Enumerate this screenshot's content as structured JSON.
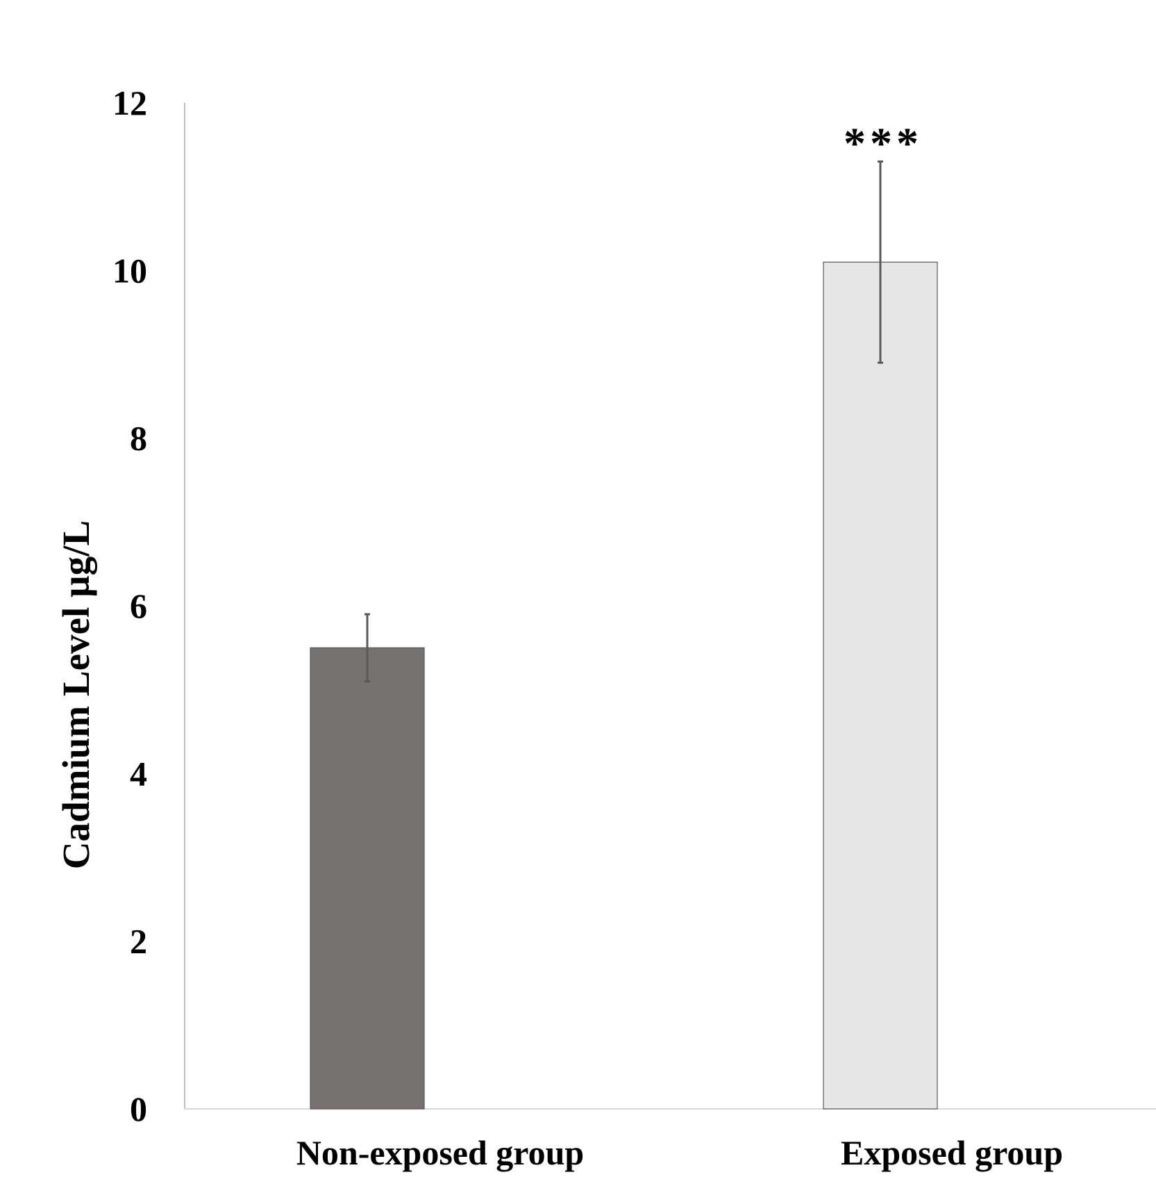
{
  "chart_data": {
    "type": "bar",
    "title": "",
    "xlabel": "",
    "ylabel": "Cadmium Level µg/L",
    "categories": [
      "Non-exposed group",
      "Exposed group"
    ],
    "values": [
      5.5,
      10.1
    ],
    "error_bars": [
      {
        "lower": 5.1,
        "upper": 5.9
      },
      {
        "lower": 8.9,
        "upper": 11.3
      }
    ],
    "bar_colors": [
      "#767171",
      "#e7e6e6"
    ],
    "bar_edge_color": "#595959",
    "error_bar_color": "#595959",
    "yticks": [
      "0",
      "2",
      "4",
      "6",
      "8",
      "10",
      "12"
    ],
    "ylim": [
      0,
      12
    ],
    "grid": false,
    "legend": "none",
    "annotations": [
      {
        "category": "Exposed group",
        "text": "***"
      }
    ]
  }
}
